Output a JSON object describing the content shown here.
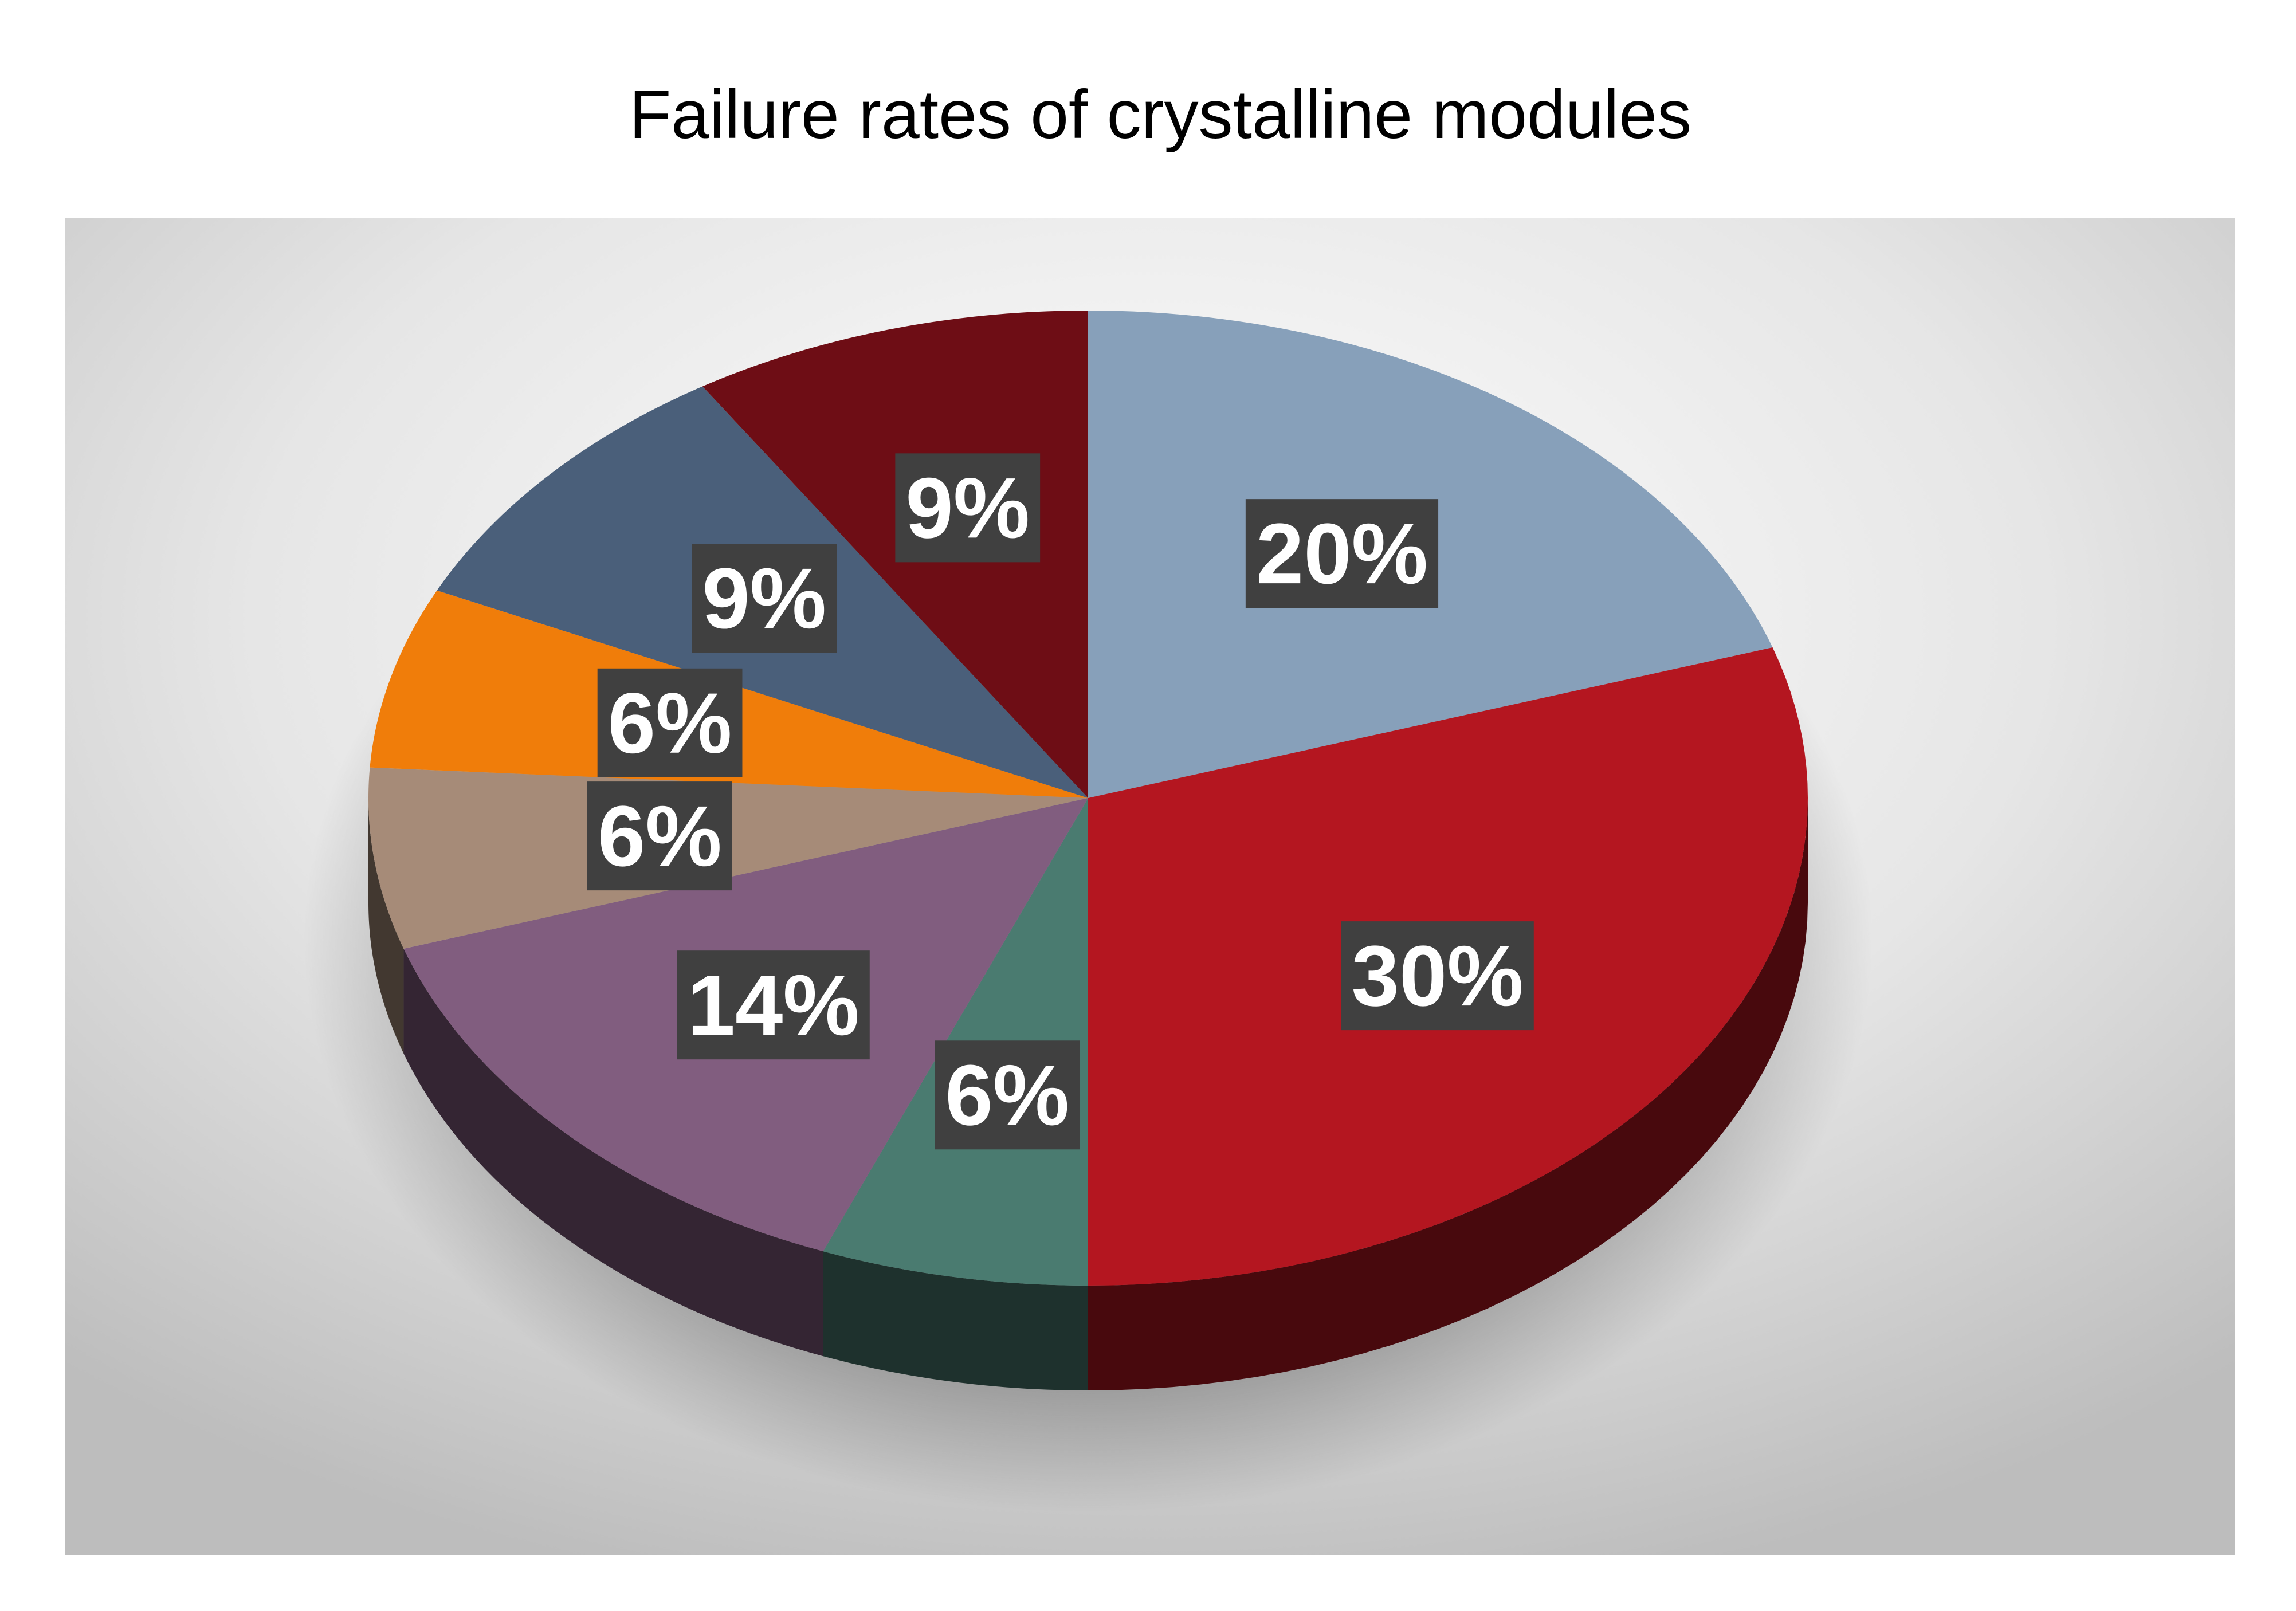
{
  "chart_data": {
    "type": "pie",
    "title": "Failure rates of crystalline modules",
    "values": [
      20,
      30,
      6,
      14,
      6,
      6,
      9,
      9
    ],
    "value_labels": [
      "20%",
      "30%",
      "6%",
      "14%",
      "6%",
      "6%",
      "9%",
      "9%"
    ],
    "colors": [
      "#87a0ba",
      "#b41620",
      "#4a7b70",
      "#815d7f",
      "#a68b78",
      "#f07d0a",
      "#4a5f7a",
      "#6e0d15"
    ]
  }
}
